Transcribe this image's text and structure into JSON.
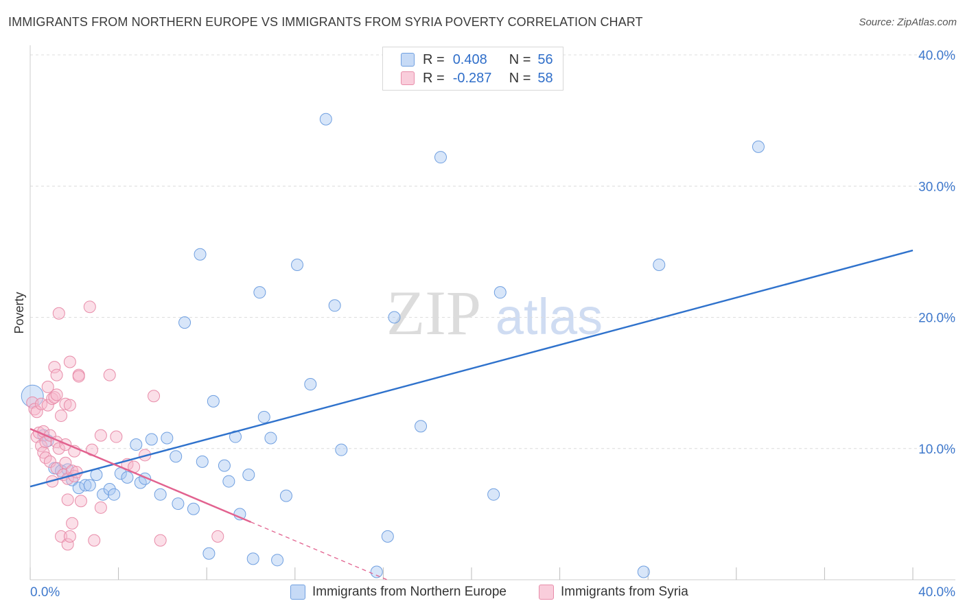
{
  "header": {
    "title": "IMMIGRANTS FROM NORTHERN EUROPE VS IMMIGRANTS FROM SYRIA POVERTY CORRELATION CHART",
    "source": "Source: ZipAtlas.com"
  },
  "watermark": {
    "zip": "ZIP",
    "atlas": "atlas"
  },
  "legend": {
    "rows": [
      {
        "r_label": "R =",
        "r_value": "0.408",
        "n_label": "N =",
        "n_value": "56",
        "color": "#a9c7f2"
      },
      {
        "r_label": "R =",
        "r_value": "-0.287",
        "n_label": "N =",
        "n_value": "58",
        "color": "#f6b8cb"
      }
    ]
  },
  "bottom_legend": {
    "series1": "Immigrants from Northern Europe",
    "series2": "Immigrants from Syria"
  },
  "colors": {
    "blue_fill": "#a9c7f2",
    "blue_stroke": "#6f9fe0",
    "blue_line": "#2f72cc",
    "pink_fill": "#f6b8cb",
    "pink_stroke": "#e88ca9",
    "pink_line": "#e2628f",
    "tick_text": "#3e78cc",
    "grid": "#dcdcdc"
  },
  "chart_data": {
    "type": "scatter",
    "title": "IMMIGRANTS FROM NORTHERN EUROPE VS IMMIGRANTS FROM SYRIA POVERTY CORRELATION CHART",
    "xlabel": "",
    "ylabel": "Poverty",
    "xlim": [
      0,
      40
    ],
    "ylim": [
      0,
      40
    ],
    "x_tick_labels": [
      "0.0%",
      "40.0%"
    ],
    "y_ticks": [
      10,
      20,
      30,
      40
    ],
    "y_tick_labels": [
      "10.0%",
      "20.0%",
      "30.0%",
      "40.0%"
    ],
    "grid": true,
    "series": [
      {
        "name": "Immigrants from Northern Europe",
        "r": 0.408,
        "n": 56,
        "trend": {
          "x": [
            0,
            40
          ],
          "y": [
            7.1,
            25.1
          ]
        },
        "points": [
          [
            0.1,
            14.0
          ],
          [
            0.6,
            11.0
          ],
          [
            0.8,
            10.6
          ],
          [
            1.1,
            8.5
          ],
          [
            1.4,
            8.3
          ],
          [
            1.7,
            8.4
          ],
          [
            1.9,
            7.6
          ],
          [
            2.2,
            7.0
          ],
          [
            2.5,
            7.2
          ],
          [
            2.7,
            7.2
          ],
          [
            3.0,
            8.0
          ],
          [
            3.3,
            6.5
          ],
          [
            3.6,
            6.9
          ],
          [
            3.8,
            6.5
          ],
          [
            4.1,
            8.1
          ],
          [
            4.4,
            7.8
          ],
          [
            4.8,
            10.3
          ],
          [
            5.0,
            7.4
          ],
          [
            5.2,
            7.7
          ],
          [
            5.5,
            10.7
          ],
          [
            5.9,
            6.5
          ],
          [
            6.2,
            10.8
          ],
          [
            6.6,
            9.4
          ],
          [
            6.7,
            5.8
          ],
          [
            7.0,
            19.6
          ],
          [
            7.4,
            5.4
          ],
          [
            7.7,
            24.8
          ],
          [
            7.8,
            9.0
          ],
          [
            8.1,
            2.0
          ],
          [
            8.3,
            13.6
          ],
          [
            8.8,
            8.7
          ],
          [
            9.0,
            7.5
          ],
          [
            9.3,
            10.9
          ],
          [
            9.5,
            5.0
          ],
          [
            9.9,
            8.0
          ],
          [
            10.1,
            1.6
          ],
          [
            10.4,
            21.9
          ],
          [
            10.6,
            12.4
          ],
          [
            10.9,
            10.8
          ],
          [
            11.2,
            1.5
          ],
          [
            11.6,
            6.4
          ],
          [
            12.1,
            24.0
          ],
          [
            12.7,
            14.9
          ],
          [
            13.4,
            35.1
          ],
          [
            13.8,
            20.9
          ],
          [
            14.1,
            9.9
          ],
          [
            15.7,
            0.6
          ],
          [
            16.2,
            3.3
          ],
          [
            16.5,
            20.0
          ],
          [
            17.7,
            11.7
          ],
          [
            18.6,
            32.2
          ],
          [
            21.0,
            6.5
          ],
          [
            21.3,
            21.9
          ],
          [
            27.8,
            0.6
          ],
          [
            28.5,
            24.0
          ],
          [
            33.0,
            33.0
          ]
        ]
      },
      {
        "name": "Immigrants from Syria",
        "r": -0.287,
        "n": 58,
        "trend_solid": {
          "x": [
            0,
            10
          ],
          "y": [
            11.5,
            4.4
          ]
        },
        "trend_dashed": {
          "x": [
            10,
            18
          ],
          "y": [
            4.4,
            -1.3
          ]
        },
        "points": [
          [
            0.1,
            13.5
          ],
          [
            0.2,
            13.0
          ],
          [
            0.3,
            12.8
          ],
          [
            0.3,
            10.9
          ],
          [
            0.4,
            11.2
          ],
          [
            0.5,
            10.2
          ],
          [
            0.5,
            13.4
          ],
          [
            0.6,
            11.3
          ],
          [
            0.6,
            9.7
          ],
          [
            0.7,
            10.5
          ],
          [
            0.7,
            9.3
          ],
          [
            0.8,
            14.7
          ],
          [
            0.8,
            13.3
          ],
          [
            0.9,
            9.0
          ],
          [
            0.9,
            11.0
          ],
          [
            1.0,
            13.8
          ],
          [
            1.0,
            7.5
          ],
          [
            1.1,
            13.9
          ],
          [
            1.1,
            16.2
          ],
          [
            1.2,
            15.6
          ],
          [
            1.2,
            14.1
          ],
          [
            1.2,
            10.5
          ],
          [
            1.2,
            8.5
          ],
          [
            1.3,
            20.3
          ],
          [
            1.3,
            10.0
          ],
          [
            1.4,
            12.5
          ],
          [
            1.4,
            3.3
          ],
          [
            1.5,
            8.0
          ],
          [
            1.6,
            13.4
          ],
          [
            1.6,
            10.3
          ],
          [
            1.6,
            8.9
          ],
          [
            1.7,
            2.7
          ],
          [
            1.7,
            7.7
          ],
          [
            1.7,
            6.1
          ],
          [
            1.8,
            16.6
          ],
          [
            1.8,
            13.3
          ],
          [
            1.8,
            3.3
          ],
          [
            1.9,
            4.3
          ],
          [
            1.9,
            8.3
          ],
          [
            2.0,
            7.9
          ],
          [
            2.0,
            9.8
          ],
          [
            2.1,
            8.2
          ],
          [
            2.2,
            15.6
          ],
          [
            2.2,
            15.5
          ],
          [
            2.3,
            6.0
          ],
          [
            2.7,
            20.8
          ],
          [
            2.8,
            9.9
          ],
          [
            2.9,
            3.0
          ],
          [
            3.2,
            5.5
          ],
          [
            3.2,
            11.0
          ],
          [
            3.6,
            15.6
          ],
          [
            3.9,
            10.9
          ],
          [
            4.4,
            8.8
          ],
          [
            5.2,
            9.5
          ],
          [
            5.6,
            14.0
          ],
          [
            5.9,
            3.0
          ],
          [
            8.5,
            3.3
          ],
          [
            4.7,
            8.6
          ]
        ]
      }
    ]
  }
}
